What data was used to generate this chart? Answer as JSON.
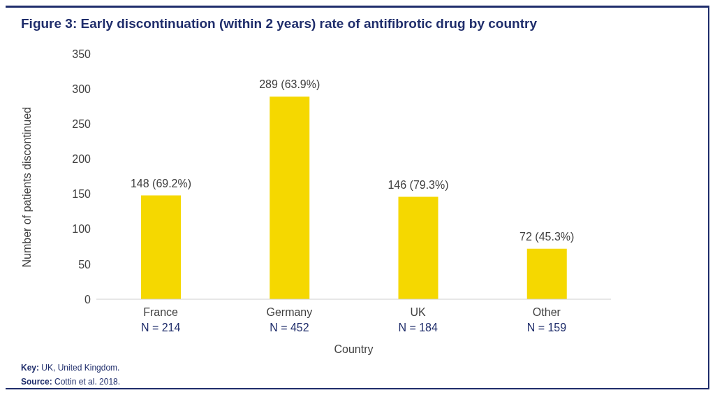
{
  "chart_data": {
    "type": "bar",
    "title": "Figure 3: Early discontinuation (within 2 years) rate of antifibrotic drug by country",
    "categories": [
      "France\nN = 214",
      "Germany\nN = 452",
      "UK\nN = 184",
      "Other\nN = 159"
    ],
    "values": [
      148,
      289,
      146,
      72
    ],
    "color": "#f5d800",
    "value_labels": [
      "148 (69.2%)",
      "289 (63.9%)",
      "146 (79.3%)",
      "72 (45.3%)"
    ],
    "xlabel": "Country",
    "ylabel": "Number of patients discontinued",
    "ylim": [
      0,
      350
    ],
    "yticks": [
      0,
      50,
      100,
      150,
      200,
      250,
      300,
      350
    ],
    "grid": false,
    "annotations": [
      "Key: UK, United Kingdom.",
      "Source: Cottin et al. 2018."
    ]
  }
}
